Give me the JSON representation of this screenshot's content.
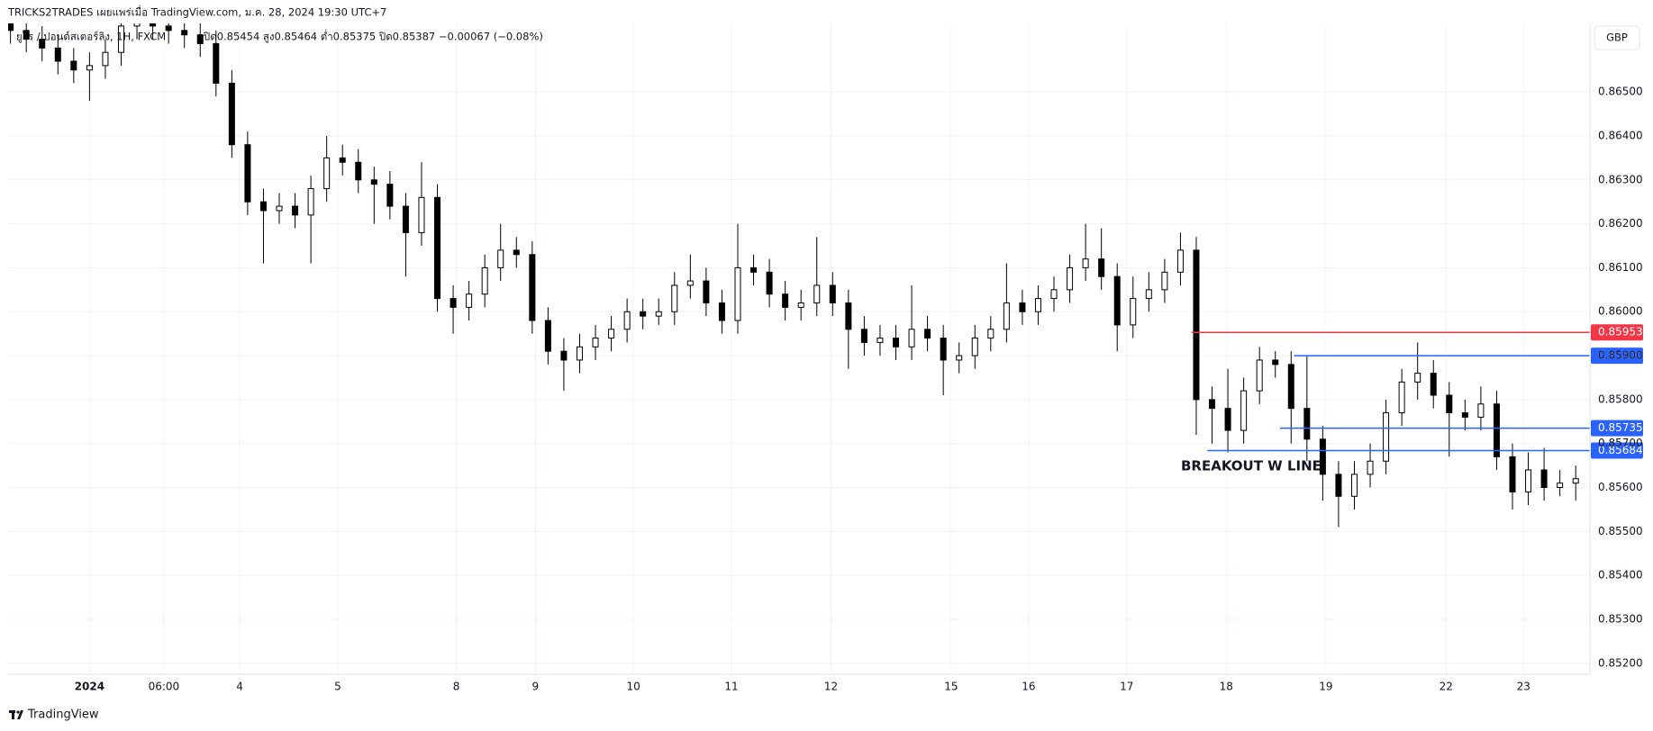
{
  "header": {
    "publisher": "TRICKS2TRADES เผยแพร่เมื่อ TradingView.com, ม.ค. 28, 2024 19:30 UTC+7",
    "symbol": "ยูโร / ปอนด์สเตอร์ลิง, 1H, FXCM",
    "ohlc_legend": "เปิด0.85454 สูง0.85464 ต่ำ0.85375 ปิด0.85387 −0.00067 (−0.08%)",
    "currency": "GBP"
  },
  "footer": {
    "brand": "TradingView"
  },
  "chart_data": {
    "type": "candlestick",
    "up_color": "#ffffff",
    "down_color": "#000000",
    "border_color": "#000000",
    "grid": true,
    "xlim": [
      -0.15,
      99.9
    ],
    "ylim": [
      0.85175,
      0.86656
    ],
    "xticks": [
      {
        "value": 5,
        "label": "2024"
      },
      {
        "value": 9.7,
        "label": "06:00"
      },
      {
        "value": 14.5,
        "label": "4"
      },
      {
        "value": 20.7,
        "label": "5"
      },
      {
        "value": 28.2,
        "label": "8"
      },
      {
        "value": 33.2,
        "label": "9"
      },
      {
        "value": 39.4,
        "label": "10"
      },
      {
        "value": 45.6,
        "label": "11"
      },
      {
        "value": 51.9,
        "label": "12"
      },
      {
        "value": 59.5,
        "label": "15"
      },
      {
        "value": 64.4,
        "label": "16"
      },
      {
        "value": 70.6,
        "label": "17"
      },
      {
        "value": 76.9,
        "label": "18"
      },
      {
        "value": 83.2,
        "label": "19"
      },
      {
        "value": 90.8,
        "label": "22"
      },
      {
        "value": 95.7,
        "label": "23"
      }
    ],
    "yticks": [
      {
        "value": 0.852,
        "label": "0.85200"
      },
      {
        "value": 0.853,
        "label": "0.85300"
      },
      {
        "value": 0.854,
        "label": "0.85400"
      },
      {
        "value": 0.855,
        "label": "0.85500"
      },
      {
        "value": 0.856,
        "label": "0.85600"
      },
      {
        "value": 0.857,
        "label": "0.85700"
      },
      {
        "value": 0.858,
        "label": "0.85800"
      },
      {
        "value": 0.859,
        "label": "0.85900"
      },
      {
        "value": 0.86,
        "label": "0.86000"
      },
      {
        "value": 0.861,
        "label": "0.86100"
      },
      {
        "value": 0.862,
        "label": "0.86200"
      },
      {
        "value": 0.863,
        "label": "0.86300"
      },
      {
        "value": 0.864,
        "label": "0.86400"
      },
      {
        "value": 0.865,
        "label": "0.86500"
      }
    ],
    "open": [
      0.8666,
      0.8664,
      0.8662,
      0.866,
      0.8657,
      0.8655,
      0.8656,
      0.8659,
      0.8665,
      0.8666,
      0.8665,
      0.8664,
      0.8663,
      0.8661,
      0.8652,
      0.8638,
      0.8625,
      0.8623,
      0.8624,
      0.8622,
      0.8628,
      0.8635,
      0.8634,
      0.863,
      0.8629,
      0.8624,
      0.8618,
      0.8626,
      0.8603,
      0.8601,
      0.8604,
      0.861,
      0.8614,
      0.8613,
      0.8598,
      0.8591,
      0.8589,
      0.8592,
      0.8594,
      0.8596,
      0.86,
      0.8599,
      0.86,
      0.8606,
      0.8607,
      0.8602,
      0.8598,
      0.861,
      0.8609,
      0.8604,
      0.8601,
      0.8602,
      0.8606,
      0.8602,
      0.8596,
      0.8593,
      0.8594,
      0.8592,
      0.8596,
      0.8594,
      0.8589,
      0.859,
      0.8594,
      0.8596,
      0.8602,
      0.86,
      0.8603,
      0.8605,
      0.861,
      0.8612,
      0.8608,
      0.8597,
      0.8603,
      0.8605,
      0.8609,
      0.8614,
      0.858,
      0.8578,
      0.8573,
      0.8582,
      0.8589,
      0.8588,
      0.8578,
      0.8571,
      0.8563,
      0.8558,
      0.8563,
      0.8566,
      0.8577,
      0.8584,
      0.8586,
      0.8581,
      0.8577,
      0.8576,
      0.8579,
      0.8567,
      0.8559,
      0.8564,
      0.856,
      0.8561
    ],
    "high": [
      0.8669,
      0.8667,
      0.8665,
      0.8663,
      0.866,
      0.8659,
      0.8662,
      0.8668,
      0.8669,
      0.8669,
      0.8668,
      0.8667,
      0.8666,
      0.8664,
      0.8655,
      0.8641,
      0.8628,
      0.8627,
      0.8627,
      0.8631,
      0.864,
      0.8638,
      0.8637,
      0.8633,
      0.8632,
      0.8627,
      0.8634,
      0.8629,
      0.8606,
      0.8607,
      0.8613,
      0.862,
      0.8617,
      0.8616,
      0.8601,
      0.8594,
      0.8595,
      0.8597,
      0.8599,
      0.8603,
      0.8603,
      0.8603,
      0.8609,
      0.8613,
      0.861,
      0.8605,
      0.862,
      0.8613,
      0.8612,
      0.8607,
      0.8605,
      0.8617,
      0.8609,
      0.8605,
      0.8599,
      0.8597,
      0.8597,
      0.8606,
      0.8599,
      0.8597,
      0.8593,
      0.8597,
      0.8599,
      0.8611,
      0.8605,
      0.8606,
      0.8608,
      0.8613,
      0.862,
      0.8619,
      0.8611,
      0.8608,
      0.8609,
      0.8612,
      0.8618,
      0.8617,
      0.8583,
      0.8587,
      0.8585,
      0.8592,
      0.8591,
      0.8591,
      0.859,
      0.8574,
      0.8566,
      0.8566,
      0.857,
      0.858,
      0.8587,
      0.8593,
      0.8589,
      0.8584,
      0.858,
      0.8583,
      0.8582,
      0.857,
      0.8568,
      0.8569,
      0.8564,
      0.8565
    ],
    "low": [
      0.8661,
      0.8659,
      0.8657,
      0.8654,
      0.8652,
      0.8648,
      0.8653,
      0.8656,
      0.8662,
      0.8662,
      0.8661,
      0.866,
      0.8658,
      0.8649,
      0.8635,
      0.8622,
      0.8611,
      0.862,
      0.8619,
      0.8611,
      0.8625,
      0.8631,
      0.8627,
      0.862,
      0.8621,
      0.8608,
      0.8615,
      0.86,
      0.8595,
      0.8598,
      0.8601,
      0.8607,
      0.861,
      0.8595,
      0.8588,
      0.8582,
      0.8586,
      0.8589,
      0.8591,
      0.8593,
      0.8596,
      0.8597,
      0.8597,
      0.8603,
      0.8599,
      0.8595,
      0.8595,
      0.8606,
      0.8601,
      0.8598,
      0.8598,
      0.8599,
      0.8599,
      0.8587,
      0.859,
      0.859,
      0.8589,
      0.8589,
      0.8591,
      0.8581,
      0.8586,
      0.8587,
      0.8591,
      0.8593,
      0.8597,
      0.8597,
      0.86,
      0.8602,
      0.8607,
      0.8605,
      0.8591,
      0.8594,
      0.86,
      0.8602,
      0.8606,
      0.8572,
      0.857,
      0.8568,
      0.857,
      0.8579,
      0.8585,
      0.857,
      0.8566,
      0.8557,
      0.8551,
      0.8555,
      0.856,
      0.8563,
      0.8574,
      0.858,
      0.8578,
      0.8567,
      0.8573,
      0.8573,
      0.8564,
      0.8555,
      0.8556,
      0.8557,
      0.8558,
      0.8557
    ],
    "close": [
      0.8664,
      0.8662,
      0.866,
      0.8657,
      0.8655,
      0.8656,
      0.8659,
      0.8665,
      0.8666,
      0.8665,
      0.8664,
      0.8663,
      0.8661,
      0.8652,
      0.8638,
      0.8625,
      0.8623,
      0.8624,
      0.8622,
      0.8628,
      0.8635,
      0.8634,
      0.863,
      0.8629,
      0.8624,
      0.8618,
      0.8626,
      0.8603,
      0.8601,
      0.8604,
      0.861,
      0.8614,
      0.8613,
      0.8598,
      0.8591,
      0.8589,
      0.8592,
      0.8594,
      0.8596,
      0.86,
      0.8599,
      0.86,
      0.8606,
      0.8607,
      0.8602,
      0.8598,
      0.861,
      0.8609,
      0.8604,
      0.8601,
      0.8602,
      0.8606,
      0.8602,
      0.8596,
      0.8593,
      0.8594,
      0.8592,
      0.8596,
      0.8594,
      0.8589,
      0.859,
      0.8594,
      0.8596,
      0.8602,
      0.86,
      0.8603,
      0.8605,
      0.861,
      0.8612,
      0.8608,
      0.8597,
      0.8603,
      0.8605,
      0.8609,
      0.8614,
      0.858,
      0.8578,
      0.8573,
      0.8582,
      0.8589,
      0.8588,
      0.8578,
      0.8571,
      0.8563,
      0.8558,
      0.8563,
      0.8566,
      0.8577,
      0.8584,
      0.8586,
      0.8581,
      0.8577,
      0.8576,
      0.8579,
      0.8567,
      0.8559,
      0.8564,
      0.856,
      0.8561,
      0.8562
    ],
    "levels": [
      {
        "price": {
          "value": 0.85953,
          "label": "0.85953"
        },
        "color": "#f23645",
        "from": 74.7
      },
      {
        "price": {
          "value": 0.859,
          "label": "0.85900"
        },
        "color": "#2962ff",
        "from": 81.2
      },
      {
        "price": {
          "value": 0.85735,
          "label": "0.85735"
        },
        "color": "#2962ff",
        "from": 80.3
      },
      {
        "price": {
          "value": 0.85684,
          "label": "0.85684"
        },
        "color": "#2962ff",
        "from": 75.7
      }
    ],
    "annotation": "BREAKOUT W LINE"
  }
}
